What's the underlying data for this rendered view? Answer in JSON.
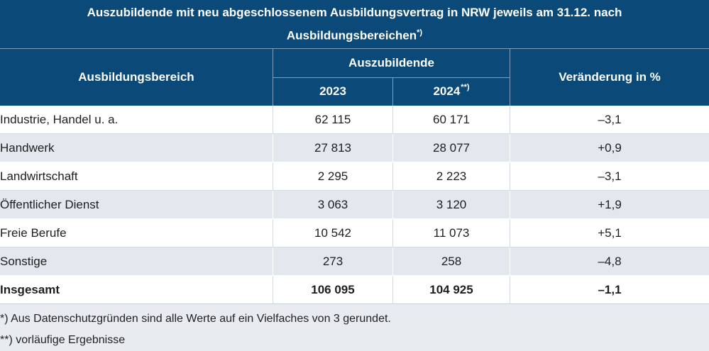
{
  "title": {
    "line1": "Auszubildende mit neu abgeschlossenem Ausbildungsvertrag in NRW jeweils am 31.12. nach",
    "line2": "Ausbildungsbereichen",
    "line2_sup": "*)"
  },
  "header": {
    "col1": "Ausbildungsbereich",
    "group": "Auszubildende",
    "year1": "2023",
    "year2": "2024",
    "year2_sup": "**)",
    "col4": "Veränderung in %"
  },
  "rows": [
    {
      "bereich": "Industrie, Handel u. a.",
      "y2023": "62 115",
      "y2024": "60 171",
      "change": "–3,1"
    },
    {
      "bereich": "Handwerk",
      "y2023": "27 813",
      "y2024": "28 077",
      "change": "+0,9"
    },
    {
      "bereich": "Landwirtschaft",
      "y2023": "2 295",
      "y2024": "2 223",
      "change": "–3,1"
    },
    {
      "bereich": "Öffentlicher Dienst",
      "y2023": "3 063",
      "y2024": "3 120",
      "change": "+1,9"
    },
    {
      "bereich": "Freie Berufe",
      "y2023": "10 542",
      "y2024": "11 073",
      "change": "+5,1"
    },
    {
      "bereich": "Sonstige",
      "y2023": "273",
      "y2024": "258",
      "change": "–4,8"
    }
  ],
  "total": {
    "bereich": "Insgesamt",
    "y2023": "106 095",
    "y2024": "104 925",
    "change": "–1,1"
  },
  "footnotes": [
    "*) Aus Datenschutzgründen sind alle Werte auf ein Vielfaches von 3 gerundet.",
    "**) vorläufige Ergebnisse"
  ]
}
